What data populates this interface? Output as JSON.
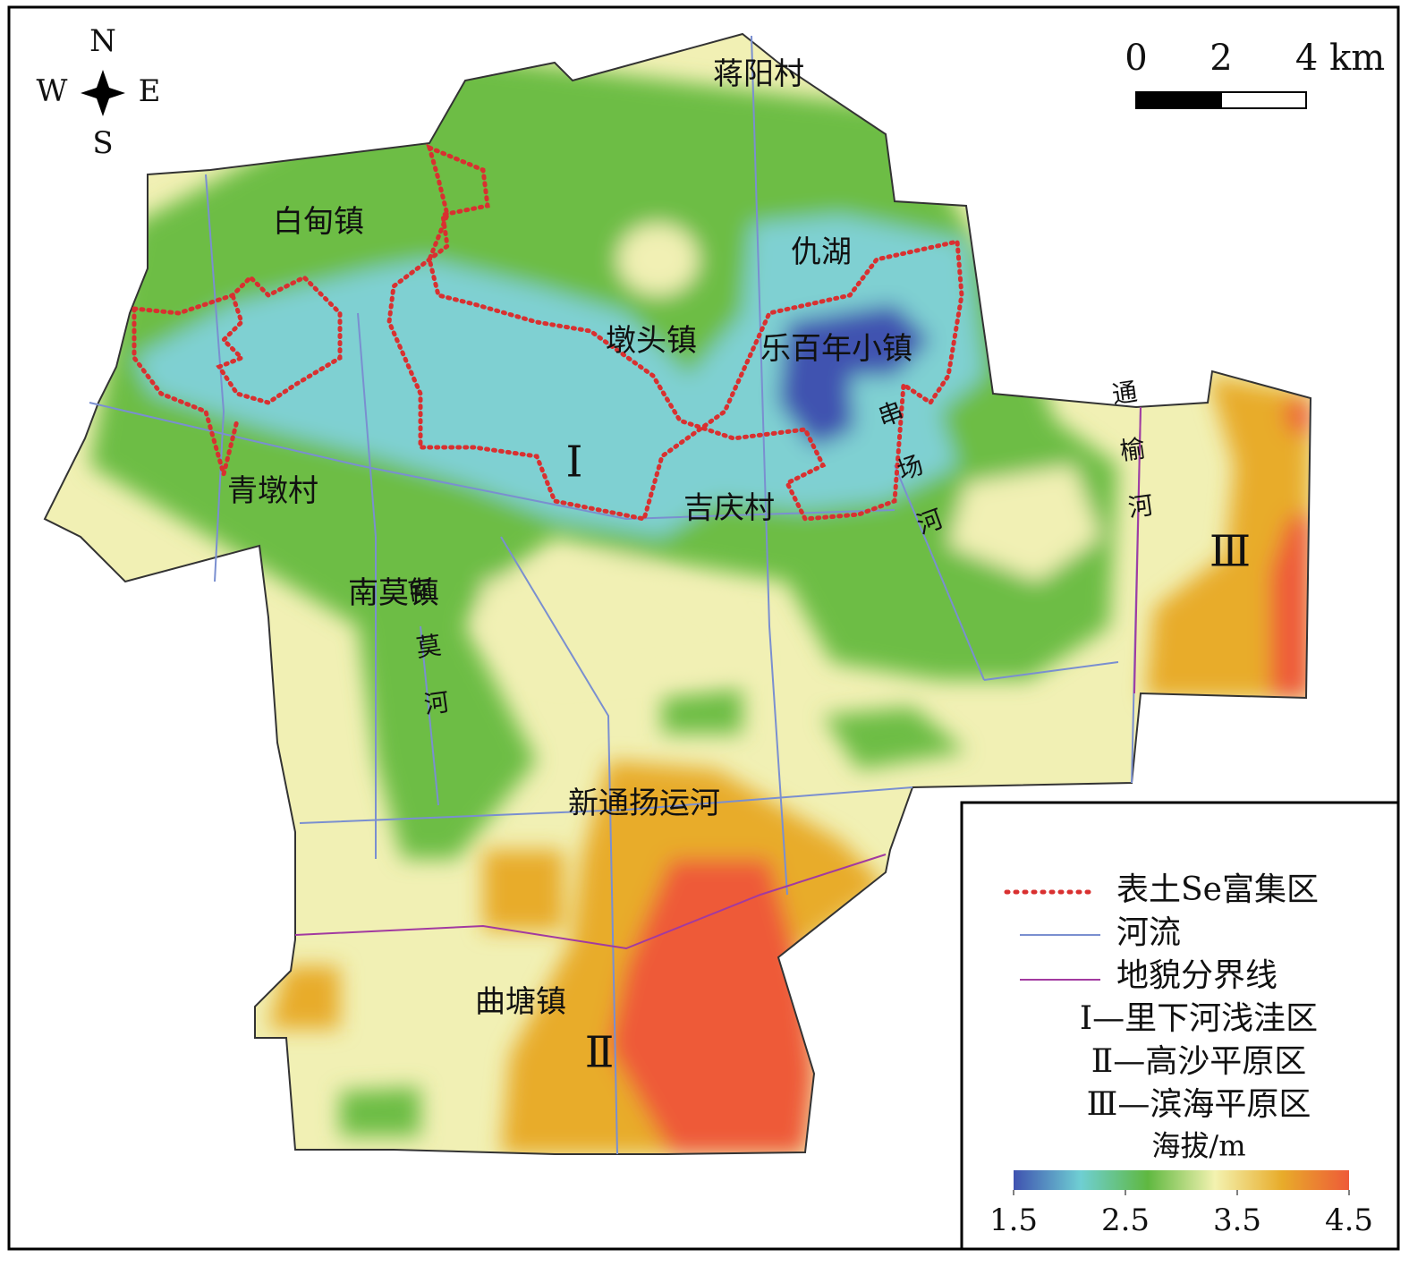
{
  "compass": {
    "n": "N",
    "e": "E",
    "s": "S",
    "w": "W"
  },
  "scale_bar": {
    "ticks": [
      0,
      2,
      {
        "value": 4,
        "label": "4 km"
      }
    ]
  },
  "places": [
    "蒋阳村",
    "白甸镇",
    "仇湖",
    "墩头镇",
    "乐百年小镇",
    "青墩村",
    "吉庆村",
    "南莫镇",
    "新通扬运河",
    "曲塘镇"
  ],
  "rivers": [
    "南莫河",
    "串场河",
    "通榆河"
  ],
  "zones": [
    "Ⅰ",
    "Ⅱ",
    "Ⅲ"
  ],
  "legend": {
    "items": [
      "表土Se富集区",
      "河流",
      "地貌分界线",
      "Ⅰ—里下河浅洼区",
      "Ⅱ—高沙平原区",
      "Ⅲ—滨海平原区"
    ],
    "colorbar": {
      "title": "海拔/m",
      "lim": [
        1.5,
        4.5
      ],
      "ticks": [
        1.5,
        2.5,
        3.5,
        4.5
      ],
      "colors": [
        "#3f52b0",
        "#6fcfd3",
        "#5fb840",
        "#f3f2b0",
        "#e8ac2a",
        "#ee5a38"
      ]
    }
  }
}
